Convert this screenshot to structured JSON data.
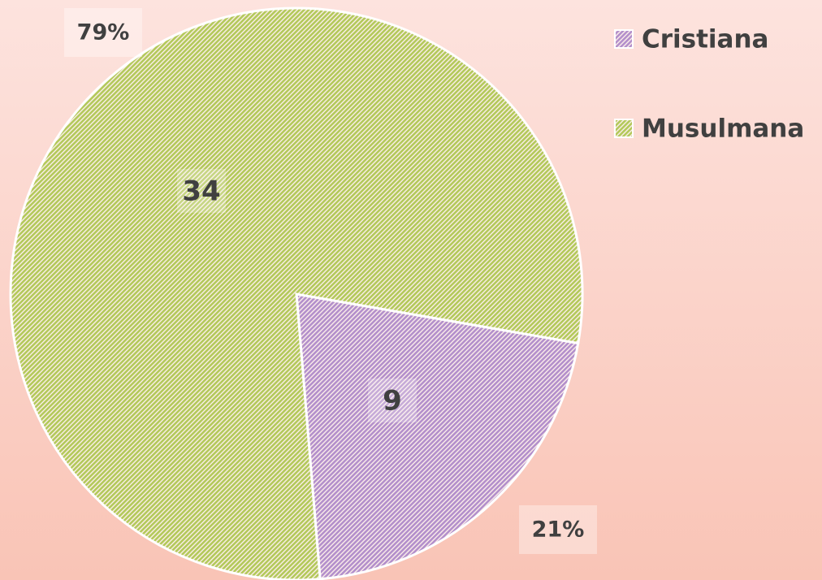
{
  "chart_data": {
    "type": "pie",
    "categories": [
      "Cristiana",
      "Musulmana"
    ],
    "values": [
      9,
      34
    ],
    "percents": [
      {
        "value": 21,
        "label": "21%"
      },
      {
        "value": 79,
        "label": "79%"
      }
    ],
    "colors": [
      "#b38fcb",
      "#b3c95a"
    ],
    "legend": "top-right"
  }
}
